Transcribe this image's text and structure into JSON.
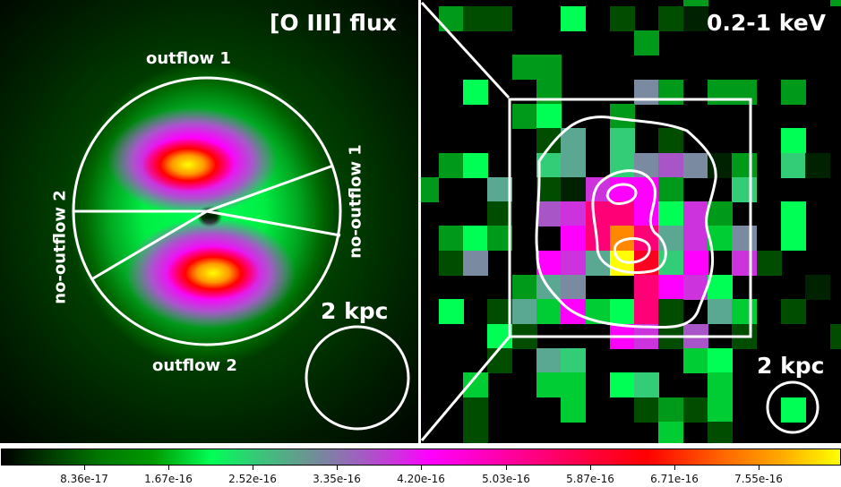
{
  "left_panel": {
    "title": "[O III] flux",
    "regions": [
      "outflow 1",
      "outflow 2",
      "no-outflow 1",
      "no-outflow 2"
    ],
    "scale_label": "2 kpc"
  },
  "right_panel": {
    "title": "0.2-1 keV",
    "scale_label": "2 kpc"
  },
  "colorbar": {
    "colormap": [
      "#000000",
      "#009900",
      "#00ff55",
      "#66998f",
      "#ff00ff",
      "#ff0000",
      "#ffff00"
    ],
    "ticks": [
      "8.36e-17",
      "1.67e-16",
      "2.52e-16",
      "3.35e-16",
      "4.20e-16",
      "5.03e-16",
      "5.87e-16",
      "6.71e-16",
      "7.55e-16"
    ]
  }
}
